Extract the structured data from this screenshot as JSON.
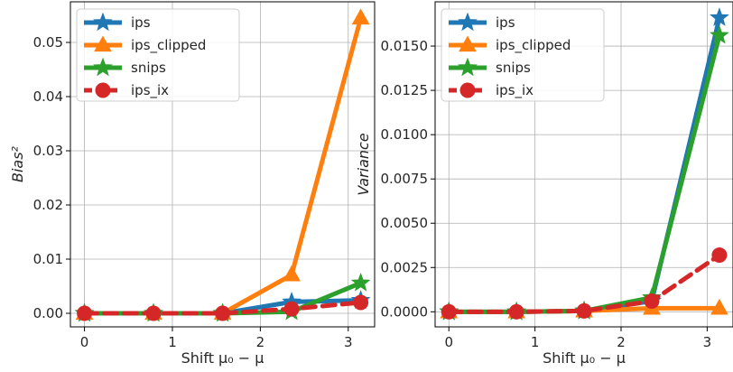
{
  "chart_data": [
    {
      "type": "line",
      "xlabel": "Shift μ₀ − μ",
      "ylabel": "Bias²",
      "x": [
        0,
        0.785,
        1.571,
        2.356,
        3.142
      ],
      "xticks": [
        "0",
        "1",
        "2",
        "3"
      ],
      "xlim": [
        -0.16,
        3.3
      ],
      "ylim": [
        -0.0025,
        0.0575
      ],
      "yticks": [
        "0.00",
        "0.01",
        "0.02",
        "0.03",
        "0.04",
        "0.05"
      ],
      "grid": true,
      "legend": "top-left",
      "series": [
        {
          "name": "ips",
          "values": [
            0,
            0,
            0,
            0.0021,
            0.0024
          ],
          "color": "#1f77b4",
          "marker": "star",
          "dash": "solid"
        },
        {
          "name": "ips_clipped",
          "values": [
            0,
            0,
            0,
            0.0071,
            0.0545
          ],
          "color": "#ff7f0e",
          "marker": "triangle",
          "dash": "solid"
        },
        {
          "name": "snips",
          "values": [
            0,
            0,
            0,
            0.0003,
            0.0056
          ],
          "color": "#2ca02c",
          "marker": "star",
          "dash": "solid"
        },
        {
          "name": "ips_ix",
          "values": [
            0,
            0,
            0,
            0.0008,
            0.002
          ],
          "color": "#d62728",
          "marker": "circle",
          "dash": "dashed"
        }
      ]
    },
    {
      "type": "line",
      "xlabel": "Shift μ₀ − μ",
      "ylabel": "Variance",
      "x": [
        0,
        0.785,
        1.571,
        2.356,
        3.142
      ],
      "xticks": [
        "0",
        "1",
        "2",
        "3"
      ],
      "xlim": [
        -0.16,
        3.3
      ],
      "ylim": [
        -0.00085,
        0.0175
      ],
      "yticks": [
        "0.0000",
        "0.0025",
        "0.0050",
        "0.0075",
        "0.0100",
        "0.0125",
        "0.0150"
      ],
      "grid": true,
      "legend": "top-left",
      "series": [
        {
          "name": "ips",
          "values": [
            0,
            0,
            5e-05,
            0.0006,
            0.0166
          ],
          "color": "#1f77b4",
          "marker": "star",
          "dash": "solid"
        },
        {
          "name": "ips_clipped",
          "values": [
            0,
            0,
            5e-05,
            0.0002,
            0.0002
          ],
          "color": "#ff7f0e",
          "marker": "triangle",
          "dash": "solid"
        },
        {
          "name": "snips",
          "values": [
            0,
            0,
            5e-05,
            0.0008,
            0.0156
          ],
          "color": "#2ca02c",
          "marker": "star",
          "dash": "solid"
        },
        {
          "name": "ips_ix",
          "values": [
            0,
            0,
            5e-05,
            0.0006,
            0.0032
          ],
          "color": "#d62728",
          "marker": "circle",
          "dash": "dashed"
        }
      ]
    }
  ]
}
